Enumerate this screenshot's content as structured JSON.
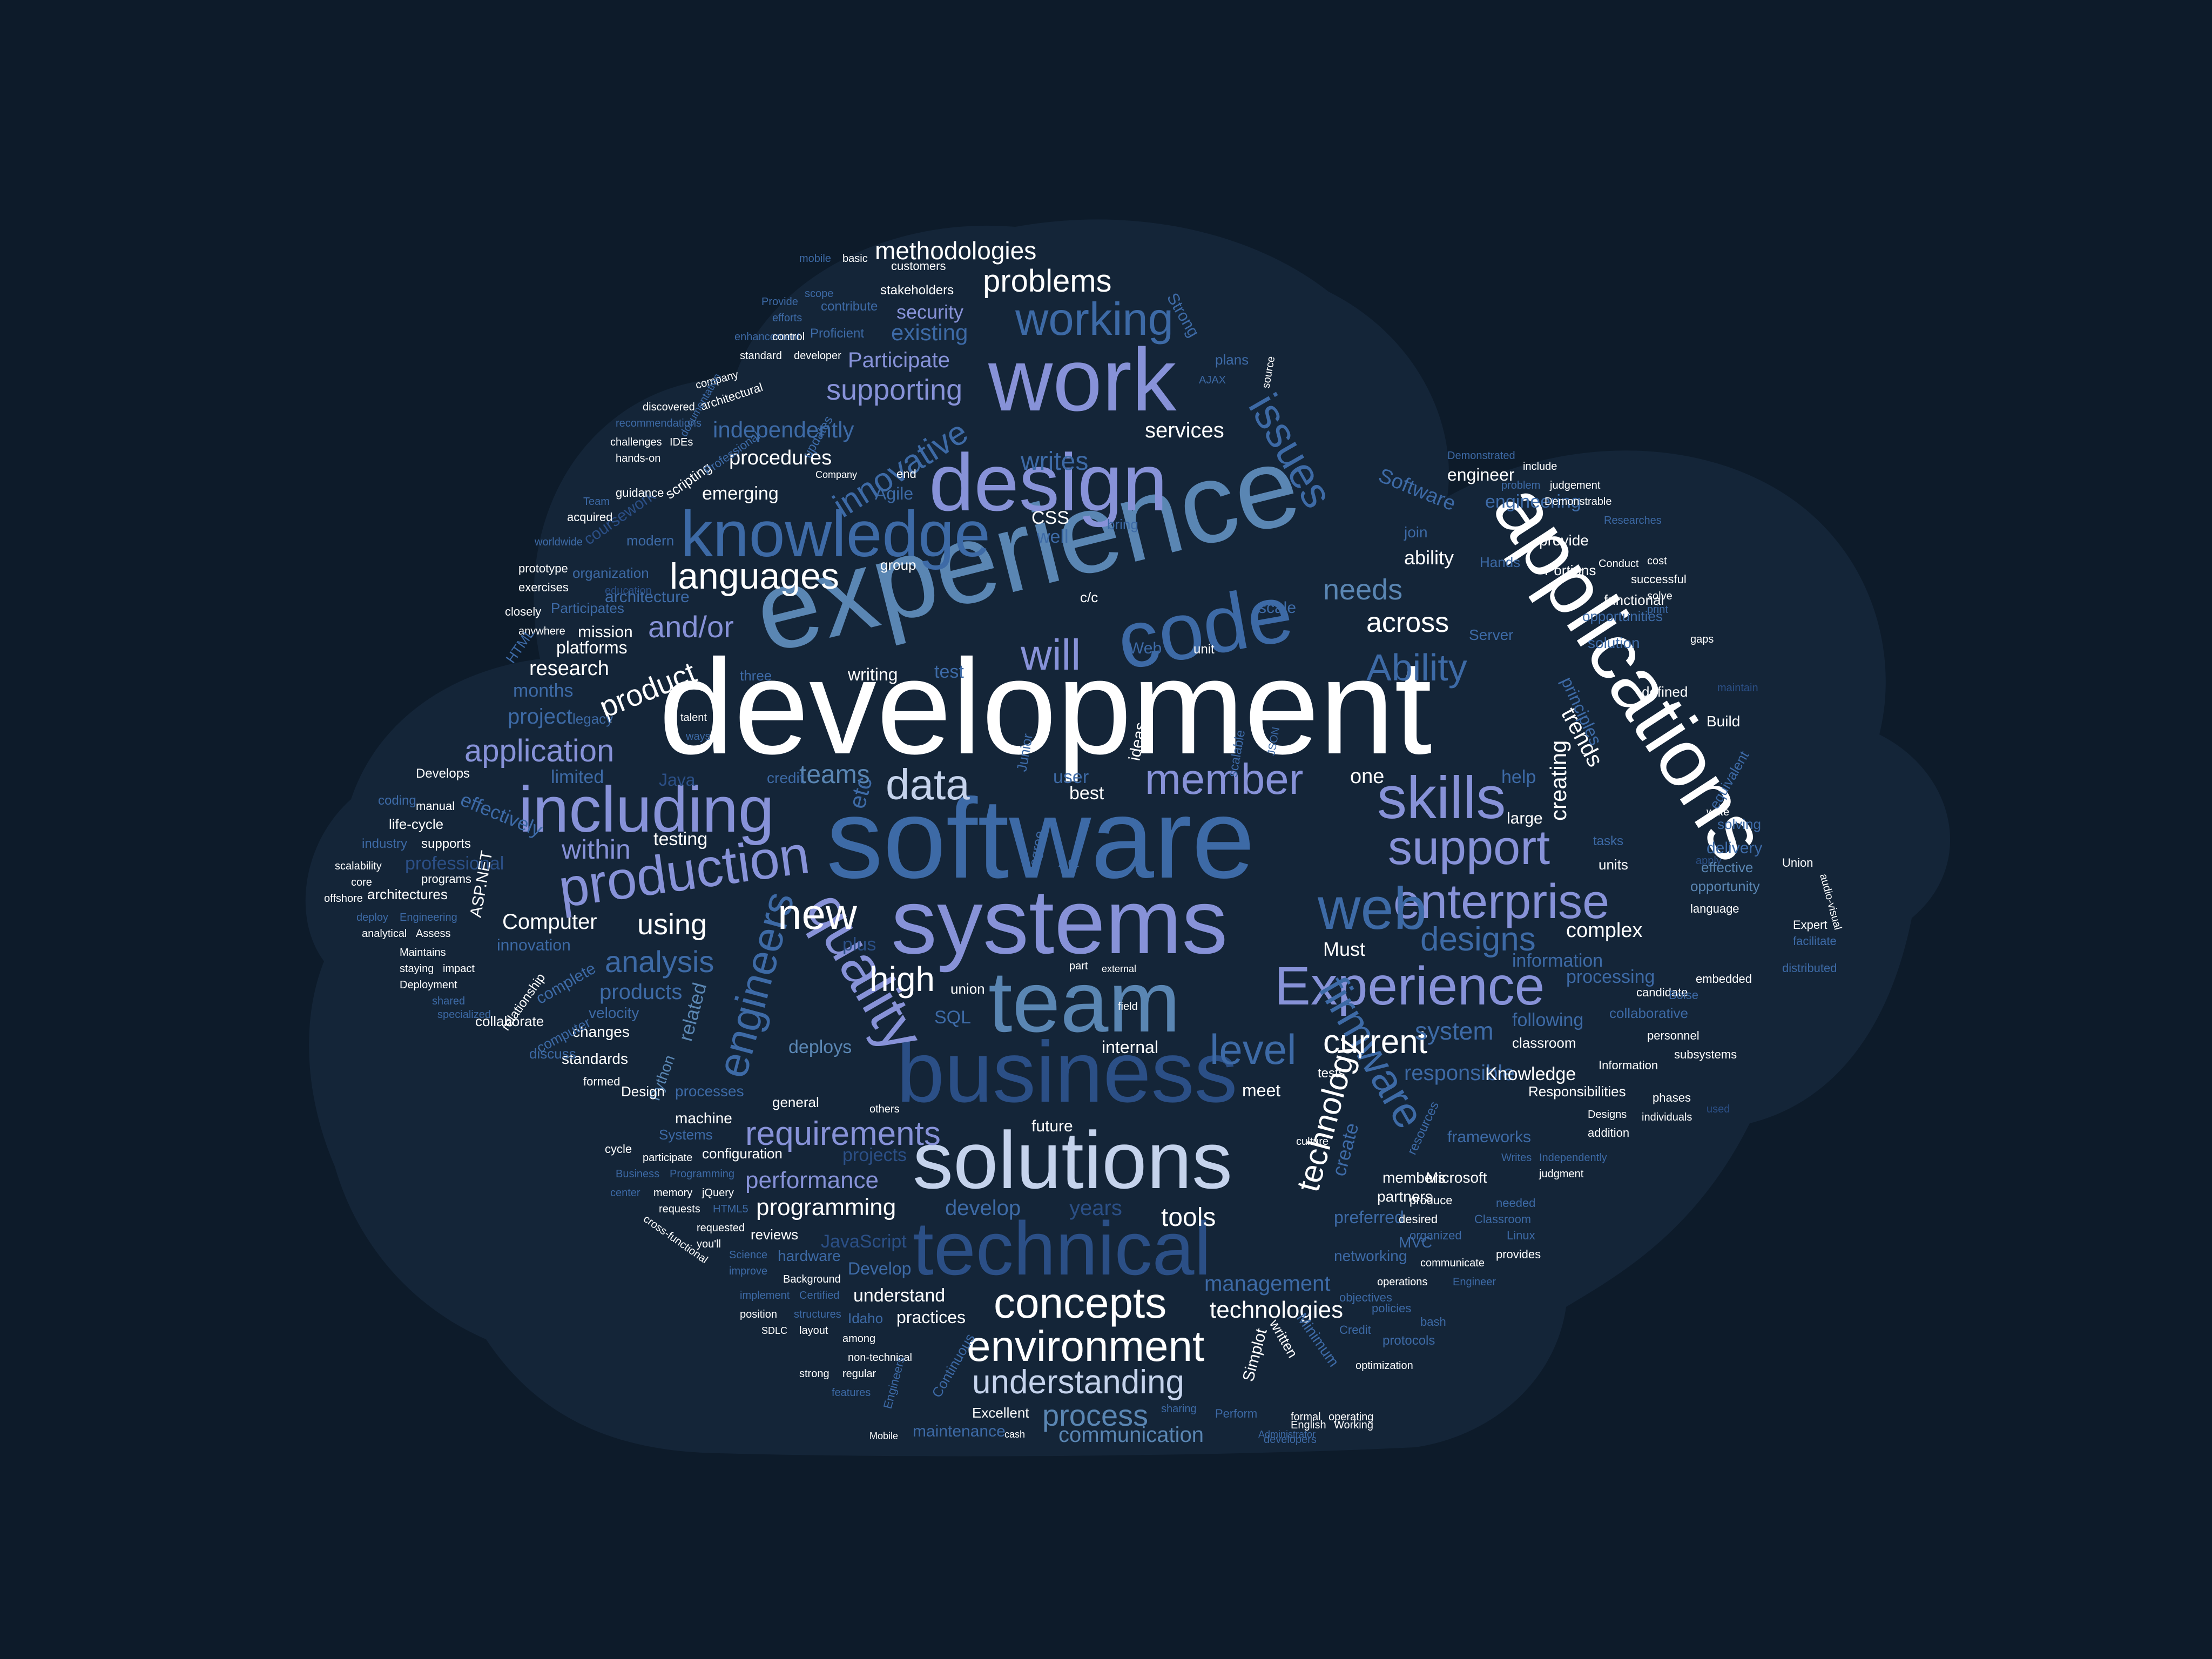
{
  "palette": {
    "background": "#0d1b2a",
    "cloud_fill": "#142538",
    "white": "#ffffff",
    "pale_blue": "#c5d3ec",
    "periwinkle": "#8792d8",
    "steel_blue": "#5a86b3",
    "mid_blue": "#3d6aa6",
    "dark_blue": "#2b4f86"
  },
  "words": {
    "development": "development",
    "experience": "experience",
    "software": "software",
    "applications": "applications",
    "systems": "systems",
    "business": "business",
    "design": "design",
    "team": "team",
    "solutions": "solutions",
    "technical": "technical",
    "code": "code",
    "work": "work",
    "knowledge": "knowledge",
    "including": "including",
    "production": "production",
    "quality": "quality",
    "enterprise": "enterprise",
    "Experience": "Experience",
    "skills": "skills",
    "support": "support",
    "web": "web",
    "concepts": "concepts",
    "environment": "environment",
    "working": "working",
    "issues": "issues",
    "firmware": "firmware",
    "engineers": "engineers",
    "requirements": "requirements",
    "understanding": "understanding",
    "data": "data",
    "new": "new",
    "member": "member",
    "will": "will",
    "Ability": "Ability",
    "languages": "languages",
    "technology": "technology",
    "innovative": "innovative",
    "level": "level",
    "current": "current",
    "designs": "designs",
    "problems": "problems",
    "methodologies": "methodologies",
    "supporting": "supporting",
    "application": "application",
    "analysis": "analysis",
    "product": "product",
    "high": "high",
    "process": "process",
    "programming": "programming",
    "performance": "performance",
    "tools": "tools",
    "technologies": "technologies",
    "management": "management",
    "communication": "communication",
    "needs": "needs",
    "across": "across",
    "creating": "creating",
    "trends": "trends",
    "writes": "writes",
    "services": "services",
    "existing": "existing",
    "security": "security",
    "Participate": "Participate",
    "independently": "independently",
    "procedures": "procedures",
    "emerging": "emerging",
    "research": "research",
    "project": "project",
    "months": "months",
    "within": "within",
    "using": "using",
    "Computer": "Computer",
    "testing": "testing",
    "teams": "teams",
    "deploys": "deploys",
    "products": "products",
    "develop": "develop",
    "years": "years",
    "projects": "projects",
    "JavaScript": "JavaScript",
    "understand": "understand",
    "practices": "practices",
    "maintenance": "maintenance",
    "Excellent": "Excellent",
    "complex": "complex",
    "information": "information",
    "processing": "processing",
    "following": "following",
    "system": "system",
    "responsible": "responsible",
    "Knowledge": "Knowledge",
    "frameworks": "frameworks",
    "delivery": "delivery",
    "ASP.NET": "ASP.NET",
    "effectively": "effectively",
    "professional": "professional",
    "architecture": "architecture",
    "platforms": "platforms",
    "mission": "mission",
    "writing": "writing",
    "Agile": "Agile",
    "SQL": "SQL",
    "Java": "Java",
    "plus": "plus",
    "related": "related",
    "Python": "Python",
    "standards": "standards",
    "Design": "Design",
    "Systems": "Systems",
    "configuration": "configuration",
    "Develop": "Develop",
    "Continuous": "Continuous",
    "Simplot": "Simplot",
    "written": "written",
    "Minimum": "Minimum",
    "preferred": "preferred",
    "create": "create",
    "Must": "Must",
    "internal": "internal",
    "future": "future",
    "best": "best",
    "user": "user",
    "one": "one",
    "help": "help",
    "large": "large",
    "principles": "principles",
    "Software": "Software",
    "engineering": "engineering",
    "engineer": "engineer",
    "Hands": "Hands",
    "join": "join",
    "ability": "ability",
    "provide": "provide",
    "Demonstrable": "Demonstrable",
    "functional": "functional",
    "Server": "Server",
    "solution": "solution",
    "defined": "defined",
    "Build": "Build",
    "tasks": "tasks",
    "units": "units",
    "Union": "Union",
    "solving": "solving",
    "effective": "effective",
    "opportunity": "opportunity",
    "language": "language",
    "Expert": "Expert",
    "facilitate": "facilitate",
    "distributed": "distributed",
    "embedded": "embedded",
    "candidate": "candidate",
    "collaborative": "collaborative",
    "personnel": "personnel",
    "classroom": "classroom",
    "subsystems": "subsystems",
    "Information": "Information",
    "phases": "phases",
    "individuals": "individuals",
    "Designs": "Designs",
    "Responsibilities": "Responsibilities",
    "addition": "addition",
    "judgment": "judgment",
    "Independently": "Independently",
    "Writes": "Writes",
    "Microsoft": "Microsoft",
    "members": "members",
    "partners": "partners",
    "produce": "produce",
    "resources": "resources",
    "desired": "desired",
    "Classroom": "Classroom",
    "needed": "needed",
    "organized": "organized",
    "Linux": "Linux",
    "provides": "provides",
    "MVC": "MVC",
    "communicate": "communicate",
    "networking": "networking",
    "objectives": "objectives",
    "operations": "operations",
    "Engineer": "Engineer",
    "bash": "bash",
    "Credit": "Credit",
    "policies": "policies",
    "protocols": "protocols",
    "optimization": "optimization",
    "Working": "Working",
    "English": "English",
    "formal": "formal",
    "operating": "operating",
    "developers": "developers",
    "Administrator": "Administrator",
    "Perform": "Perform",
    "sharing": "sharing",
    "cash": "cash",
    "Mobile": "Mobile",
    "features": "features",
    "among": "among",
    "regular": "regular",
    "strong": "strong",
    "non-technical": "non-technical",
    "layout": "layout",
    "Engineers": "Engineers",
    "Idaho": "Idaho",
    "Certified": "Certified",
    "implement": "implement",
    "structures": "structures",
    "position": "position",
    "SDLC": "SDLC",
    "Background": "Background",
    "improve": "improve",
    "Science": "Science",
    "hardware": "hardware",
    "reviews": "reviews",
    "you'll": "you'll",
    "requested": "requested",
    "requests": "requests",
    "HTML5": "HTML5",
    "cross-functional": "cross-functional",
    "memory": "memory",
    "jQuery": "jQuery",
    "Business": "Business",
    "center": "center",
    "Programming": "Programming",
    "cycle": "cycle",
    "participate": "participate",
    "machine": "machine",
    "processes": "processes",
    "general": "general",
    "others": "others",
    "formed": "formed",
    "changes": "changes",
    "discuss": "discuss",
    "computer": "computer",
    "collaborate": "collaborate",
    "velocity": "velocity",
    "complete": "complete",
    "innovation": "innovation",
    "relationship": "relationship",
    "Maintains": "Maintains",
    "Assess": "Assess",
    "impact": "impact",
    "staying": "staying",
    "Deployment": "Deployment",
    "shared": "shared",
    "specialized": "specialized",
    "analytical": "analytical",
    "deploy": "deploy",
    "Engineering": "Engineering",
    "architectures": "architectures",
    "offshore": "offshore",
    "scalability": "scalability",
    "core": "core",
    "programs": "programs",
    "supports": "supports",
    "industry": "industry",
    "life-cycle": "life-cycle",
    "manual": "manual",
    "coding": "coding",
    "limited": "limited",
    "Develops": "Develops",
    "credit": "credit",
    "talent": "talent",
    "ways": "ways",
    "three": "three",
    "legacy": "legacy",
    "and/or": "and/or",
    "test": "test",
    "etc": "etc",
    "CSS": "CSS",
    "well": "well",
    "bring": "bring",
    "c/c": "c/c",
    "Web": "Web",
    "unit": "unit",
    "scale": "scale",
    "ideas": "ideas",
    "Junior": "Junior",
    "scalable": "scalable",
    "JSON": "JSON",
    "degree": "degree",
    "Act": "Act",
    "union": "union",
    "part": "part",
    "field": "field",
    "external": "external",
    "meet": "meet",
    "tests": "tests",
    "culture": "culture",
    "organization": "organization",
    "modern": "modern",
    "coursework": "coursework",
    "scripting": "scripting",
    "Professional": "Professional",
    "education": "education",
    "guidance": "guidance",
    "acquired": "acquired",
    "worldwide": "worldwide",
    "prototype": "prototype",
    "exercises": "exercises",
    "closely": "closely",
    "Participates": "Participates",
    "anywhere": "anywhere",
    "HTML": "HTML",
    "Team": "Team",
    "challenges": "challenges",
    "IDEs": "IDEs",
    "hands-on": "hands-on",
    "discovered": "discovered",
    "recommendations": "recommendations",
    "architectural": "architectural",
    "company": "company",
    "documentation": "documentation",
    "updates": "updates",
    "enhancement": "enhancement",
    "Proficient": "Proficient",
    "control": "control",
    "standard": "standard",
    "developer": "developer",
    "contribute": "contribute",
    "Provide": "Provide",
    "efforts": "efforts",
    "scope": "scope",
    "stakeholders": "stakeholders",
    "mobile": "mobile",
    "basic": "basic",
    "customers": "customers",
    "group": "group",
    "end": "end",
    "Company": "Company",
    "AJAX": "AJAX",
    "plans": "plans",
    "Strong": "Strong",
    "source": "source",
    "include": "include",
    "problem": "problem",
    "judgement": "judgement",
    "Demonstrated": "Demonstrated",
    "Portions": "Portions",
    "cost": "cost",
    "Conduct": "Conduct",
    "successful": "successful",
    "solve": "solve",
    "opportunities": "opportunities",
    "gaps": "gaps",
    "maintain": "maintain",
    "Researches": "Researches",
    "print": "print",
    "equivalent": "equivalent",
    "write": "write",
    "audio-visual": "audio-visual",
    "apply": "apply",
    "used": "used",
    "Boise": "Boise"
  }
}
